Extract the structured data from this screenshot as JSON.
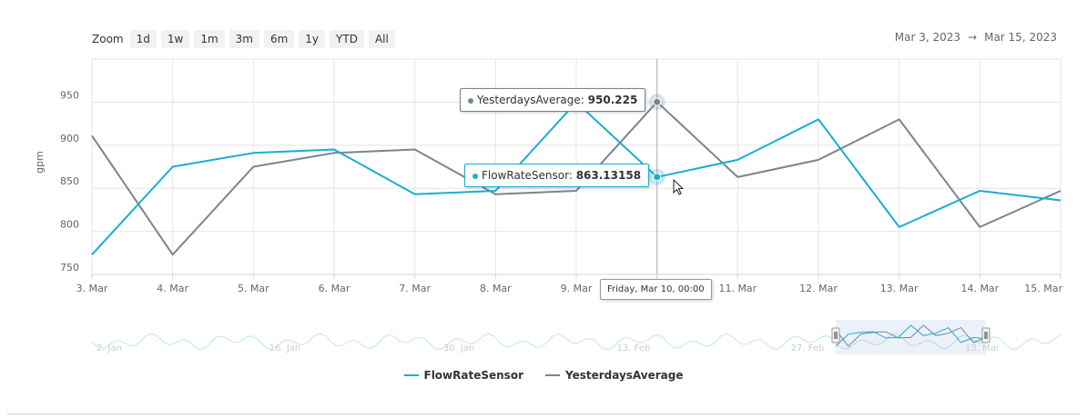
{
  "zoom": {
    "label": "Zoom",
    "buttons": [
      "1d",
      "1w",
      "1m",
      "3m",
      "6m",
      "1y",
      "YTD",
      "All"
    ]
  },
  "range": {
    "from": "Mar 3, 2023",
    "arrow": "→",
    "to": "Mar 15, 2023"
  },
  "chart_data": {
    "type": "line",
    "ylabel": "gpm",
    "ylim": [
      750,
      1000
    ],
    "yticks": [
      750,
      800,
      850,
      900,
      950
    ],
    "categories": [
      "3. Mar",
      "4. Mar",
      "5. Mar",
      "6. Mar",
      "7. Mar",
      "8. Mar",
      "9. Mar",
      "10. Mar",
      "11. Mar",
      "12. Mar",
      "13. Mar",
      "14. Mar",
      "15. Mar"
    ],
    "visible_tick_labels": [
      "3. Mar",
      "4. Mar",
      "5. Mar",
      "6. Mar",
      "7. Mar",
      "8. Mar",
      "9. Mar",
      "",
      "11. Mar",
      "12. Mar",
      "13. Mar",
      "14. Mar",
      "15. Mar"
    ],
    "series": [
      {
        "name": "FlowRateSensor",
        "color": "#1aadce",
        "values": [
          773,
          875,
          891,
          895,
          843,
          847,
          950,
          863.13158,
          883,
          930,
          805,
          847,
          836
        ]
      },
      {
        "name": "YesterdaysAverage",
        "color": "#77858f",
        "values": [
          911,
          773,
          875,
          891,
          895,
          843,
          847,
          950.225,
          863,
          883,
          930,
          805,
          847
        ]
      }
    ],
    "tooltip": {
      "x_label": "Friday, Mar 10, 00:00",
      "items": [
        {
          "name": "YesterdaysAverage",
          "value": "950.225"
        },
        {
          "name": "FlowRateSensor",
          "value": "863.13158"
        }
      ]
    },
    "navigator": {
      "labels": [
        "2. Jan",
        "16. Jan",
        "30. Jan",
        "13. Feb",
        "27. Feb",
        "13. Mar"
      ]
    },
    "legend": [
      "FlowRateSensor",
      "YesterdaysAverage"
    ],
    "grid": true,
    "legend_position": "bottom-center"
  }
}
